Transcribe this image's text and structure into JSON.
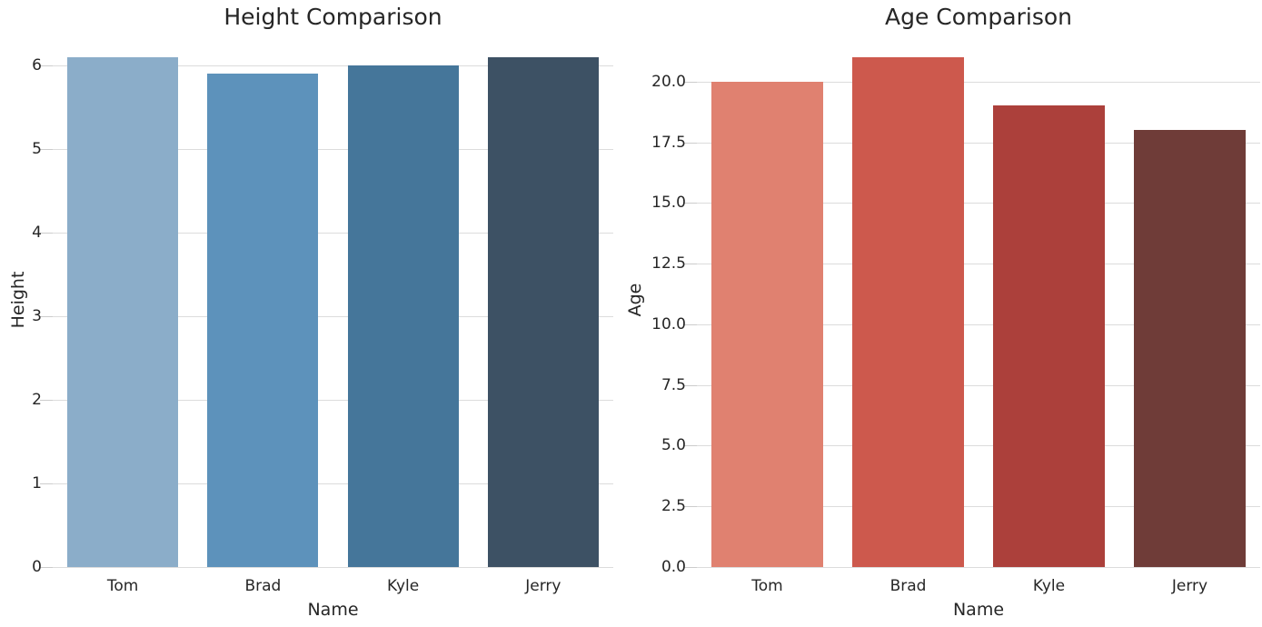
{
  "figure": {
    "background_color": "#ffffff",
    "grid_color": "#dcdcdc",
    "tick_color": "#cccccc",
    "text_color": "#262626"
  },
  "chart_data": [
    {
      "type": "bar",
      "title": "Height Comparison",
      "xlabel": "Name",
      "ylabel": "Height",
      "categories": [
        "Tom",
        "Brad",
        "Kyle",
        "Jerry"
      ],
      "values": [
        6.1,
        5.9,
        6.0,
        6.1
      ],
      "ylim": [
        0,
        6.405
      ],
      "yticks": [
        0,
        1,
        2,
        3,
        4,
        5,
        6
      ],
      "ytick_labels": [
        "0",
        "1",
        "2",
        "3",
        "4",
        "5",
        "6"
      ],
      "bar_colors": [
        "#8badc9",
        "#5d92bb",
        "#45769a",
        "#3d5164"
      ],
      "grid": true,
      "legend": false
    },
    {
      "type": "bar",
      "title": "Age Comparison",
      "xlabel": "Name",
      "ylabel": "Age",
      "categories": [
        "Tom",
        "Brad",
        "Kyle",
        "Jerry"
      ],
      "values": [
        20,
        21,
        19,
        18
      ],
      "ylim": [
        0,
        22.05
      ],
      "yticks": [
        0,
        2.5,
        5,
        7.5,
        10,
        12.5,
        15,
        17.5,
        20
      ],
      "ytick_labels": [
        "0.0",
        "2.5",
        "5.0",
        "7.5",
        "10.0",
        "12.5",
        "15.0",
        "17.5",
        "20.0"
      ],
      "bar_colors": [
        "#e08170",
        "#cd594d",
        "#ac403b",
        "#6f3c38"
      ],
      "grid": true,
      "legend": false
    }
  ]
}
